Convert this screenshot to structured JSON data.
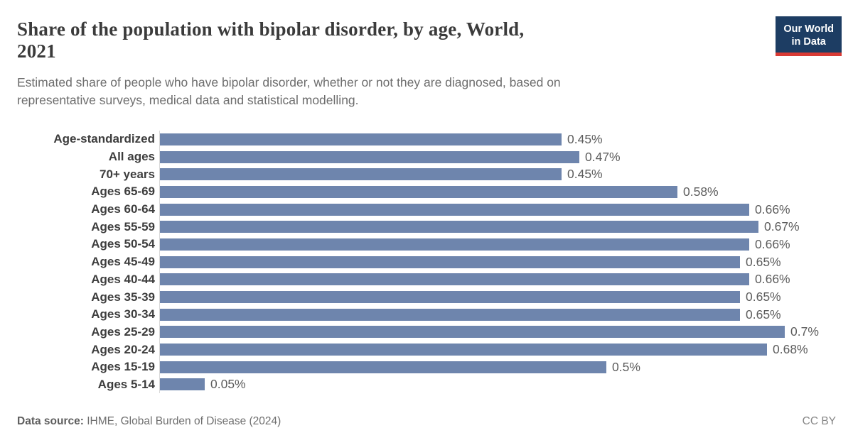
{
  "header": {
    "title_line1": "Share of the population with bipolar disorder, by age, World,",
    "title_line2": "2021",
    "subtitle_line1": "Estimated share of people who have bipolar disorder, whether or not they are diagnosed, based on",
    "subtitle_line2": "representative surveys, medical data and statistical modelling."
  },
  "logo": {
    "line1": "Our World",
    "line2": "in Data",
    "bg_color": "#1d3d63",
    "stripe_color": "#d93a34"
  },
  "chart_data": {
    "type": "bar",
    "orientation": "horizontal",
    "title": "Share of the population with bipolar disorder, by age, World, 2021",
    "xlabel": "",
    "ylabel": "",
    "unit": "%",
    "xlim": [
      0,
      0.7
    ],
    "grid": false,
    "legend": "none",
    "bar_color": "#6e85ad",
    "axis_line_color": "#d9d9d9",
    "categories": [
      "Age-standardized",
      "All ages",
      "70+ years",
      "Ages 65-69",
      "Ages 60-64",
      "Ages 55-59",
      "Ages 50-54",
      "Ages 45-49",
      "Ages 40-44",
      "Ages 35-39",
      "Ages 30-34",
      "Ages 25-29",
      "Ages 20-24",
      "Ages 15-19",
      "Ages 5-14"
    ],
    "values": [
      0.45,
      0.47,
      0.45,
      0.58,
      0.66,
      0.67,
      0.66,
      0.65,
      0.66,
      0.65,
      0.65,
      0.7,
      0.68,
      0.5,
      0.05
    ],
    "value_labels": [
      "0.45%",
      "0.47%",
      "0.45%",
      "0.58%",
      "0.66%",
      "0.67%",
      "0.66%",
      "0.65%",
      "0.66%",
      "0.65%",
      "0.65%",
      "0.7%",
      "0.68%",
      "0.5%",
      "0.05%"
    ]
  },
  "footer": {
    "source_label": "Data source:",
    "source_value": "IHME, Global Burden of Disease (2024)",
    "license": "CC BY"
  }
}
